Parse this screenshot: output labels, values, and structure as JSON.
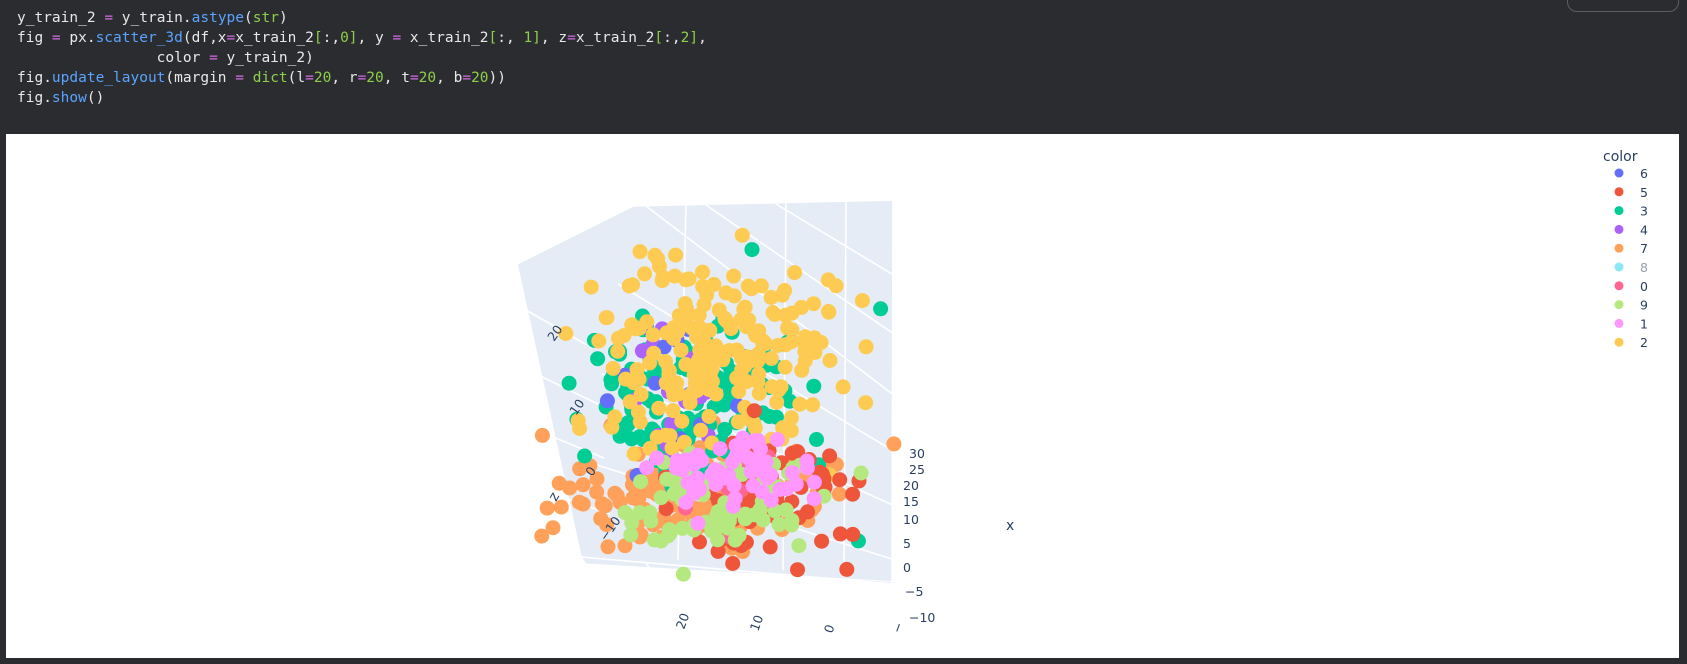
{
  "code_cell": {
    "lines": [
      [
        {
          "t": "y_train_2 "
        },
        {
          "t": "=",
          "c": "op"
        },
        {
          "t": " y_train."
        },
        {
          "t": "astype",
          "c": "fn"
        },
        {
          "t": "("
        },
        {
          "t": "str",
          "c": "str"
        },
        {
          "t": ")"
        }
      ],
      [
        {
          "t": "fig "
        },
        {
          "t": "=",
          "c": "op"
        },
        {
          "t": " px."
        },
        {
          "t": "scatter_3d",
          "c": "fn"
        },
        {
          "t": "(df,x"
        },
        {
          "t": "=",
          "c": "op"
        },
        {
          "t": "x_train_2"
        },
        {
          "t": "[",
          "c": "br"
        },
        {
          "t": ":,"
        },
        {
          "t": "0",
          "c": "num"
        },
        {
          "t": "]",
          "c": "br"
        },
        {
          "t": ", y "
        },
        {
          "t": "=",
          "c": "op"
        },
        {
          "t": " x_train_2"
        },
        {
          "t": "[",
          "c": "br"
        },
        {
          "t": ":, "
        },
        {
          "t": "1",
          "c": "num"
        },
        {
          "t": "]",
          "c": "br"
        },
        {
          "t": ", z"
        },
        {
          "t": "=",
          "c": "op"
        },
        {
          "t": "x_train_2"
        },
        {
          "t": "[",
          "c": "br"
        },
        {
          "t": ":,"
        },
        {
          "t": "2",
          "c": "num"
        },
        {
          "t": "]",
          "c": "br"
        },
        {
          "t": ","
        }
      ],
      [
        {
          "t": "                color "
        },
        {
          "t": "=",
          "c": "op"
        },
        {
          "t": " y_train_2)"
        }
      ],
      [
        {
          "t": "fig."
        },
        {
          "t": "update_layout",
          "c": "fn"
        },
        {
          "t": "(margin "
        },
        {
          "t": "=",
          "c": "op"
        },
        {
          "t": " "
        },
        {
          "t": "dict",
          "c": "str"
        },
        {
          "t": "(l"
        },
        {
          "t": "=",
          "c": "op"
        },
        {
          "t": "20",
          "c": "num"
        },
        {
          "t": ", r"
        },
        {
          "t": "=",
          "c": "op"
        },
        {
          "t": "20",
          "c": "num"
        },
        {
          "t": ", t"
        },
        {
          "t": "=",
          "c": "op"
        },
        {
          "t": "20",
          "c": "num"
        },
        {
          "t": ", b"
        },
        {
          "t": "=",
          "c": "op"
        },
        {
          "t": "20",
          "c": "num"
        },
        {
          "t": "))"
        }
      ],
      [
        {
          "t": "fig."
        },
        {
          "t": "show",
          "c": "fn"
        },
        {
          "t": "()"
        }
      ]
    ]
  },
  "chart_data": {
    "type": "scatter",
    "projection": "3d",
    "title": "",
    "axes": {
      "x": {
        "label": "x",
        "ticks": [
          "30",
          "25",
          "20",
          "15",
          "10",
          "5",
          "0",
          "−5",
          "−10"
        ]
      },
      "y": {
        "label": "",
        "ticks": [
          "20",
          "10",
          "0",
          "−"
        ]
      },
      "z": {
        "label": "z",
        "ticks": [
          "20",
          "10",
          "0",
          "−10"
        ]
      }
    },
    "legend": {
      "title": "color",
      "placement": "top-right",
      "entries": [
        {
          "name": "6",
          "color": "#636efa"
        },
        {
          "name": "5",
          "color": "#ef553b"
        },
        {
          "name": "3",
          "color": "#00cc96"
        },
        {
          "name": "4",
          "color": "#ab63fa"
        },
        {
          "name": "7",
          "color": "#ffa15a"
        },
        {
          "name": "8",
          "color": "#19d3f3",
          "hidden": true
        },
        {
          "name": "0",
          "color": "#ff6692"
        },
        {
          "name": "9",
          "color": "#b6e880"
        },
        {
          "name": "1",
          "color": "#ff97ff"
        },
        {
          "name": "2",
          "color": "#fecb52"
        }
      ]
    },
    "series": [
      {
        "name": "7",
        "cx": -3,
        "cy": 14,
        "cz": -7,
        "sx": 7,
        "sy": 6,
        "sz": 3,
        "n": 160
      },
      {
        "name": "3",
        "cx": -1,
        "cy": 12,
        "cz": 6,
        "sx": 5,
        "sy": 5,
        "sz": 6,
        "n": 150
      },
      {
        "name": "4",
        "cx": -3,
        "cy": 15,
        "cz": 5,
        "sx": 3,
        "sy": 3,
        "sz": 5,
        "n": 18
      },
      {
        "name": "6",
        "cx": -1,
        "cy": 12,
        "cz": 8,
        "sx": 4,
        "sy": 4,
        "sz": 5,
        "n": 14
      },
      {
        "name": "2",
        "cx": 3,
        "cy": 5,
        "cz": 14,
        "sx": 5,
        "sy": 5,
        "sz": 7,
        "n": 220
      },
      {
        "name": "5",
        "cx": 5,
        "cy": -5,
        "cz": -3,
        "sx": 5,
        "sy": 3,
        "sz": 4,
        "n": 70
      },
      {
        "name": "0",
        "cx": 12,
        "cy": -6,
        "cz": -1,
        "sx": 3,
        "sy": 2,
        "sz": 3,
        "n": 10
      },
      {
        "name": "9",
        "cx": 4,
        "cy": 2,
        "cz": -5,
        "sx": 4,
        "sy": 4,
        "sz": 3,
        "n": 70
      },
      {
        "name": "1",
        "cx": 5,
        "cy": 0,
        "cz": 0,
        "sx": 4,
        "sy": 3,
        "sz": 2,
        "n": 60
      }
    ]
  }
}
